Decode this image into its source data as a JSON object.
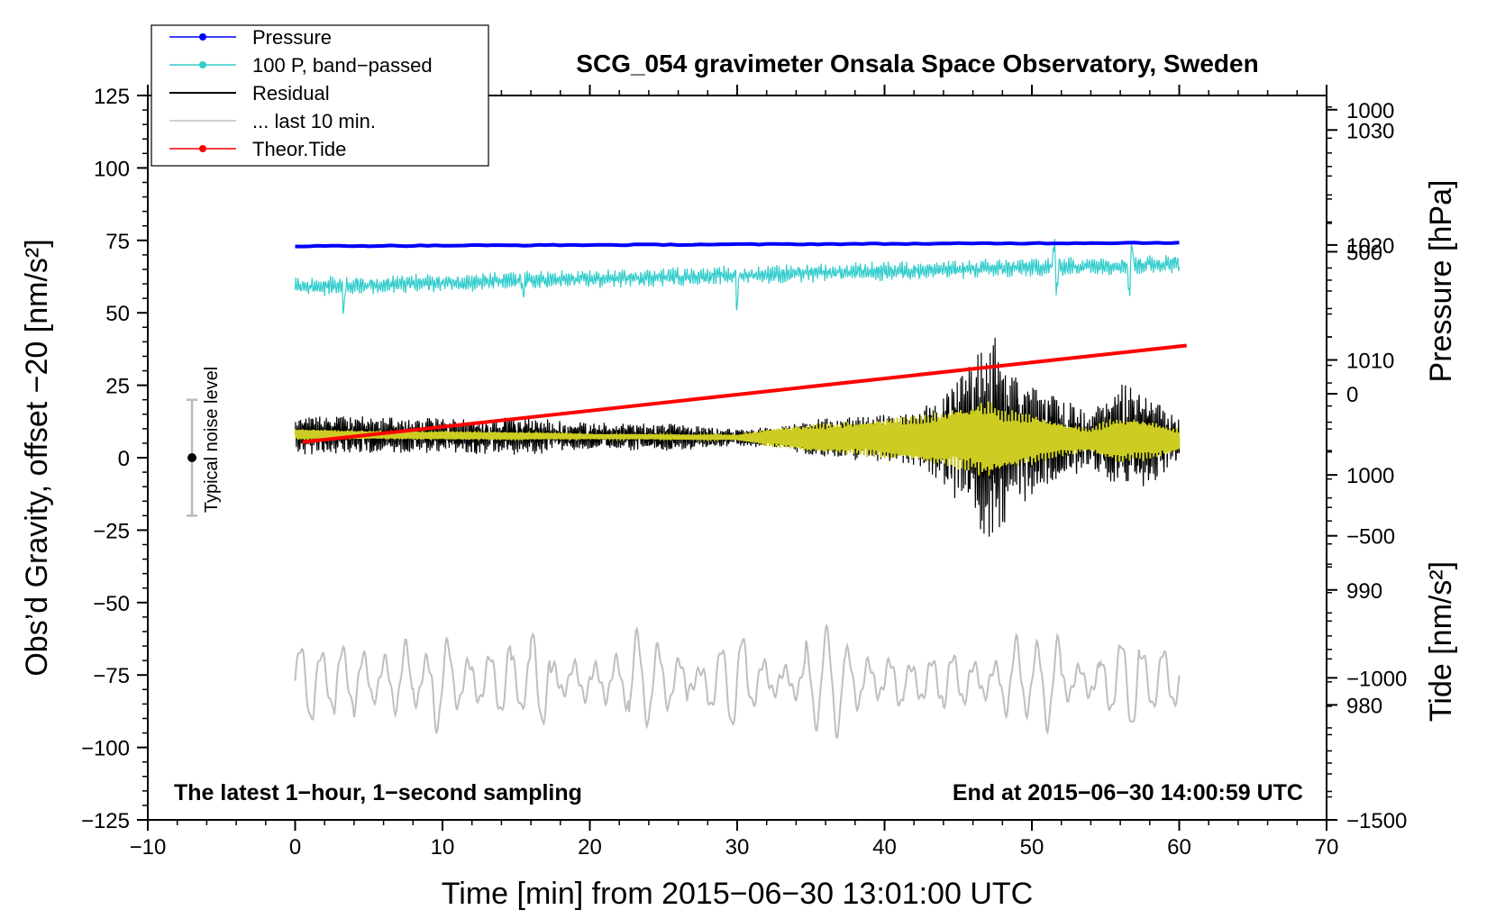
{
  "chart_data": {
    "type": "line",
    "title": "SCG_054 gravimeter Onsala Space Observatory, Sweden",
    "xlabel": "Time [min] from 2015−06−30 13:01:00 UTC",
    "ylabel_left": "Obs’d Gravity, offset −20 [nm/s²]",
    "ylabel_right_top": "Pressure [hPa]",
    "ylabel_right_bottom": "Tide [nm/s²]",
    "xlim": [
      -10,
      70
    ],
    "ylim_left": [
      -125,
      125
    ],
    "ylim_pressure": [
      970,
      1033
    ],
    "ylim_tide": [
      -1500,
      1050
    ],
    "x_ticks": [
      -10,
      0,
      10,
      20,
      30,
      40,
      50,
      60,
      70
    ],
    "x_tick_labels": [
      "−10",
      "0",
      "10",
      "20",
      "30",
      "40",
      "50",
      "60",
      "70"
    ],
    "y_left_ticks": [
      125,
      100,
      75,
      50,
      25,
      0,
      -25,
      -50,
      -75,
      -100,
      -125
    ],
    "y_left_tick_labels": [
      "125",
      "100",
      "75",
      "50",
      "25",
      "0",
      "−25",
      "−50",
      "−75",
      "−100",
      "−125"
    ],
    "pressure_ticks": [
      1030,
      1020,
      1010,
      1000,
      990,
      980
    ],
    "pressure_tick_labels": [
      "1030",
      "1020",
      "1010",
      "1000",
      "990",
      "980"
    ],
    "tide_ticks": [
      1000,
      500,
      0,
      -500,
      -1000,
      -1500
    ],
    "tide_tick_labels": [
      "1000",
      "500",
      "0",
      "−500",
      "−1000",
      "−1500"
    ],
    "legend": [
      {
        "label": "Pressure",
        "color": "#0000ff",
        "marker": true
      },
      {
        "label": "100 P, band−passed",
        "color": "#33cccc",
        "marker": true
      },
      {
        "label": "Residual",
        "color": "#000000",
        "marker": false
      },
      {
        "label": "... last 10 min.",
        "color": "#bfbfbf",
        "marker": false
      },
      {
        "label": "Theor.Tide",
        "color": "#ff0000",
        "marker": true
      }
    ],
    "legend_position": "top-left",
    "annotation_left": "The latest 1−hour, 1−second sampling",
    "annotation_right": "End at 2015−06−30 14:00:59 UTC",
    "noise_label": "Typical noise level",
    "noise_bar": {
      "x": -7,
      "center": 0,
      "half_range": 20
    },
    "series": [
      {
        "name": "Pressure",
        "axis": "pressure",
        "color": "#0000ff",
        "x": [
          0,
          10,
          20,
          30,
          40,
          50,
          60
        ],
        "y": [
          1019.9,
          1019.95,
          1020.0,
          1020.05,
          1020.1,
          1020.15,
          1020.2
        ]
      },
      {
        "name": "100 P, band−passed",
        "axis": "left",
        "color": "#33cccc",
        "mean_start": 59,
        "mean_end": 67,
        "amplitude": 3.5,
        "spikes": [
          [
            3.3,
            -7
          ],
          [
            15.5,
            6
          ],
          [
            15.5,
            -9
          ],
          [
            30,
            -10
          ],
          [
            51.5,
            7
          ],
          [
            51.7,
            -7
          ],
          [
            56.6,
            -9
          ],
          [
            56.8,
            6
          ]
        ]
      },
      {
        "name": "Residual",
        "axis": "left",
        "color": "#000000",
        "envelope_x": [
          0,
          5,
          10,
          15,
          20,
          25,
          30,
          33,
          36,
          39,
          42,
          44,
          45,
          46,
          47,
          47.5,
          48,
          49,
          50,
          52,
          54,
          55,
          56,
          57,
          58,
          59,
          60
        ],
        "envelope_amp": [
          7,
          6.5,
          6,
          7,
          5,
          5,
          3,
          4,
          7,
          8,
          10,
          16,
          22,
          28,
          35,
          37,
          33,
          25,
          20,
          15,
          10,
          15,
          20,
          18,
          16,
          12,
          8
        ],
        "center_start": 8,
        "center_end": 6
      },
      {
        "name": "Smoothed residual",
        "axis": "left",
        "color": "#cccc22",
        "envelope_x": [
          0,
          5,
          10,
          15,
          20,
          25,
          30,
          32,
          35,
          38,
          40,
          42,
          44,
          46,
          47,
          48,
          50,
          52,
          54,
          55,
          56,
          58,
          60
        ],
        "envelope_amp": [
          2,
          1.5,
          1.5,
          1.5,
          1,
          1,
          1,
          3,
          5,
          6,
          7,
          8,
          10,
          12,
          14,
          11,
          9,
          6,
          4,
          7,
          8,
          7,
          4
        ],
        "center_start": 8,
        "center_end": 6
      },
      {
        "name": "... last 10 min.",
        "axis": "left",
        "color": "#bfbfbf",
        "mean": -77,
        "amplitude_range": [
          5,
          20
        ],
        "cycles": 42
      },
      {
        "name": "Theor.Tide",
        "axis": "tide",
        "color": "#ff0000",
        "x": [
          0.5,
          60.5
        ],
        "y": [
          -170,
          170
        ]
      }
    ]
  }
}
